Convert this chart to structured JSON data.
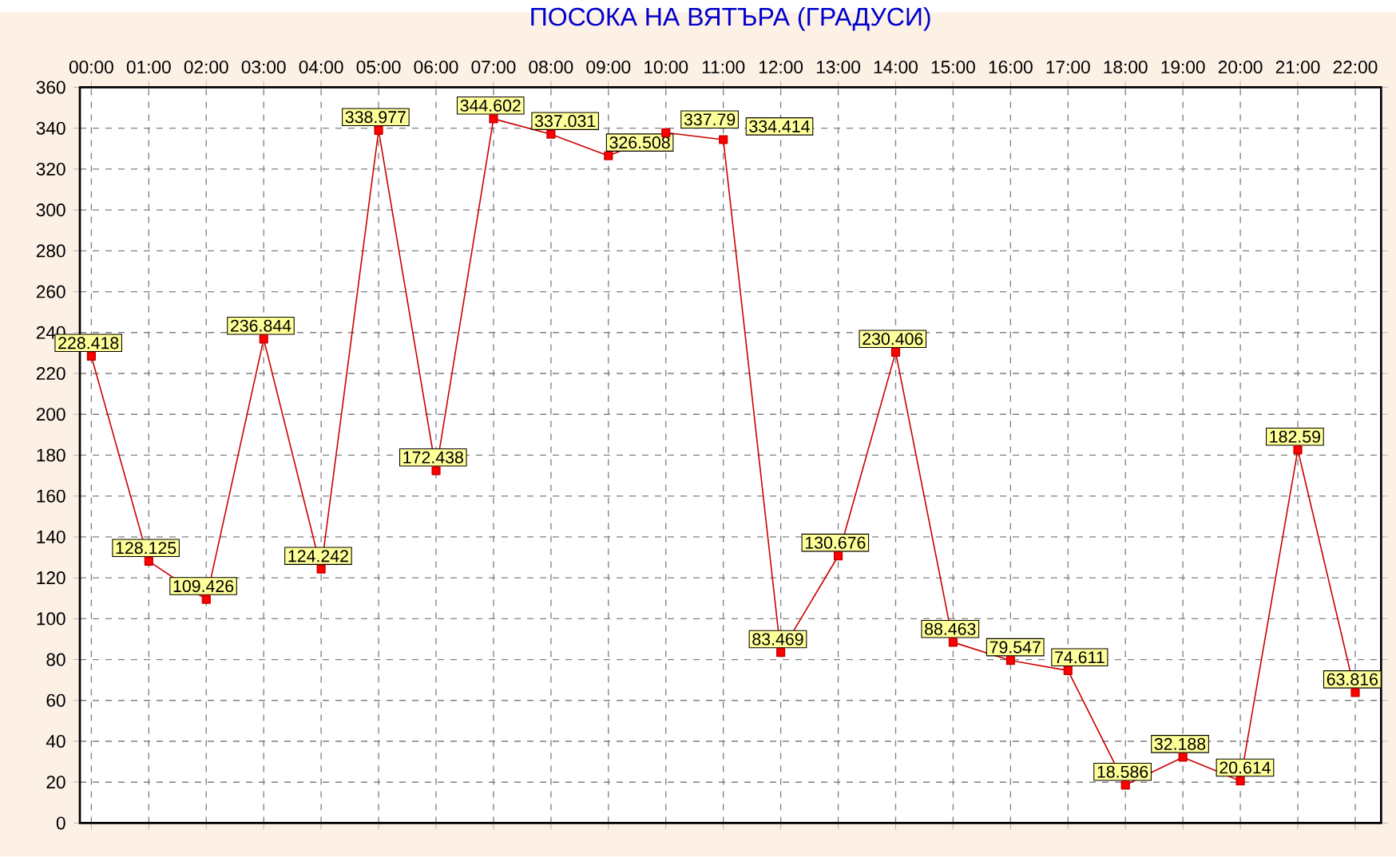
{
  "chart_data": {
    "type": "line",
    "title": "ПОСОКА НА ВЯТЪРА   (ГРАДУСИ)",
    "categories": [
      "00:00",
      "01:00",
      "02:00",
      "03:00",
      "04:00",
      "05:00",
      "06:00",
      "07:00",
      "08:00",
      "09:00",
      "10:00",
      "11:00",
      "12:00",
      "13:00",
      "14:00",
      "15:00",
      "16:00",
      "17:00",
      "18:00",
      "19:00",
      "20:00",
      "21:00",
      "22:00"
    ],
    "values": [
      228.418,
      128.125,
      109.426,
      236.844,
      124.242,
      338.977,
      172.438,
      344.602,
      337.031,
      326.508,
      337.79,
      334.414,
      83.469,
      130.676,
      230.406,
      88.463,
      79.547,
      74.611,
      18.586,
      32.188,
      20.614,
      182.59,
      63.816
    ],
    "color": "#cc0000",
    "marker": "square",
    "line_style": "solid",
    "data_labels": true,
    "grid": true,
    "ylim": [
      0,
      360
    ],
    "yticks": [
      0,
      20,
      40,
      60,
      80,
      100,
      120,
      140,
      160,
      180,
      200,
      220,
      240,
      260,
      280,
      300,
      320,
      340,
      360
    ]
  }
}
